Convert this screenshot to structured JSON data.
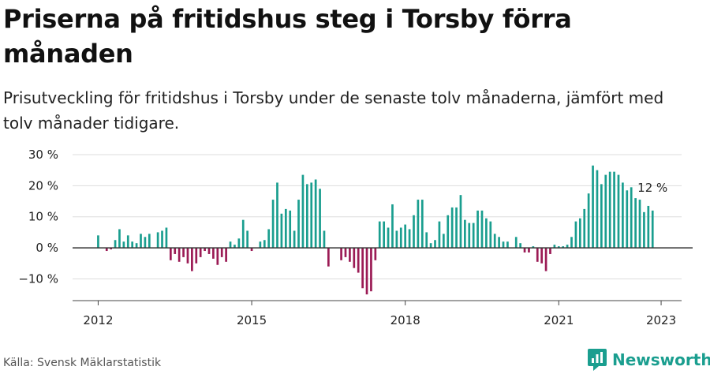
{
  "title": "Priserna på fritidshus steg i Torsby förra månaden",
  "subtitle": "Prisutveckling för fritidshus i Torsby under de senaste tolv månaderna, jämfört med tolv månader tidigare.",
  "source": "Källa: Svensk Mäklarstatistik",
  "brand": {
    "name": "Newsworthy",
    "icon": "newsworthy-logo-icon"
  },
  "colors": {
    "positive": "#1a9e8f",
    "negative": "#9b1b55",
    "grid": "#dddddd",
    "zero": "#333333"
  },
  "chart_data": {
    "type": "bar",
    "ylim": [
      -17,
      30
    ],
    "yticks": [
      -10,
      0,
      10,
      20,
      30
    ],
    "ytick_labels": [
      "−10 %",
      "0 %",
      "10 %",
      "20 %",
      "30 %"
    ],
    "xticks": [
      2012,
      2015,
      2018,
      2021,
      2023
    ],
    "xtick_labels": [
      "2012",
      "2015",
      "2018",
      "2021",
      "2023"
    ],
    "x_range": [
      2011.5,
      2023.4
    ],
    "grid": true,
    "annotation": {
      "text": "12 %"
    },
    "series": [
      {
        "start": "2012-01",
        "values": [
          4,
          null,
          -1,
          -0.5,
          2.5,
          6,
          2,
          4,
          2,
          1.5,
          4.5,
          3.5,
          4.5,
          null,
          5,
          5.5,
          6.5,
          -4,
          -2,
          -4.5,
          -3,
          -5,
          -7.5,
          -5,
          -3,
          -1,
          -2,
          -3.5,
          -5.5,
          -3,
          -4.5,
          2,
          1,
          3,
          9,
          5.5,
          -1,
          null,
          2,
          2.5,
          6,
          15.5,
          21,
          11,
          12.5,
          12,
          5.5,
          15.5,
          23.5,
          20.5,
          21,
          22,
          19,
          5.5,
          -6,
          null,
          null,
          -4,
          -3,
          -4.5,
          -6.5,
          -8,
          -13,
          -15,
          -14,
          -4,
          8.5,
          8.5,
          6.5,
          14,
          5.5,
          6.5,
          7.5,
          6,
          10.5,
          15.5,
          15.5,
          5,
          1.5,
          2.5,
          8.5,
          4.5,
          10.5,
          13,
          13,
          17,
          9,
          8,
          8,
          12,
          12,
          9.5,
          8.5,
          4.5,
          3.5,
          2,
          2,
          null,
          3.5,
          1.5,
          -1.5,
          -1.5,
          0.5,
          -4.5,
          -5,
          -7.5,
          -2,
          1,
          0.5,
          0.5,
          1,
          3.5,
          8.5,
          9.5,
          12.5,
          17.5,
          26.5,
          25,
          20.5,
          23.5,
          24.5,
          24.5,
          23.5,
          21,
          18.5,
          19.5,
          16,
          15.5,
          11.5,
          13.5,
          12
        ]
      }
    ]
  }
}
